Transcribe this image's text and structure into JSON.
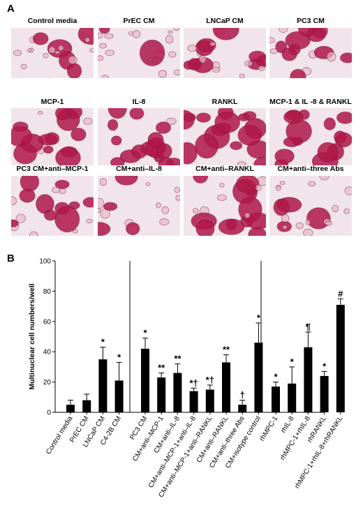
{
  "panel_a": {
    "letter": "A",
    "tiles": [
      {
        "title": "Control media",
        "density": 0.15
      },
      {
        "title": "PrEC CM",
        "density": 0.18
      },
      {
        "title": "LNCaP CM",
        "density": 0.55
      },
      {
        "title": "PC3 CM",
        "density": 0.6
      },
      {
        "title": "MCP-1",
        "density": 0.8
      },
      {
        "title": "IL-8",
        "density": 0.75
      },
      {
        "title": "RANKL",
        "density": 0.85
      },
      {
        "title": "MCP-1 & IL -8 & RANKL",
        "density": 0.9
      },
      {
        "title": "PC3 CM+anti–MCP-1",
        "density": 0.45
      },
      {
        "title": "CM+anti–IL-8",
        "density": 0.5
      },
      {
        "title": "CM+anti–RANKL",
        "density": 0.5
      },
      {
        "title": "CM+anti–three Abs",
        "density": 0.2
      }
    ],
    "stain_color": "#b0184a"
  },
  "panel_b": {
    "letter": "B"
  },
  "chart_data": {
    "type": "bar",
    "ylabel": "Multinuclear cell numbers/well",
    "xlabel": "",
    "ylim": [
      0,
      100
    ],
    "yticks": [
      0,
      20,
      40,
      60,
      80,
      100
    ],
    "bar_color": "#000000",
    "groups": [
      {
        "categories": [
          "Control media",
          "PrEC CM",
          "LNCaP CM",
          "C4-2B CM"
        ],
        "values": [
          5,
          8,
          35,
          21
        ],
        "errors": [
          3,
          4,
          8,
          12
        ],
        "annotations": [
          "",
          "",
          "*",
          "*"
        ]
      },
      {
        "categories": [
          "PC3 CM",
          "CM+anti–MCP-1",
          "CM+anti–IL-8",
          "CM+anti–MCP-1+anti–IL-8",
          "CM+anti–MCP-1+anti–RANKL",
          "CM+anti–RANKL",
          "CM+anti–three Abs",
          "CM+isotype control"
        ],
        "values": [
          42,
          23,
          26,
          14,
          15,
          33,
          5,
          46
        ],
        "errors": [
          7,
          3,
          6,
          2,
          3,
          5,
          3,
          13
        ],
        "annotations": [
          "*",
          "**",
          "**",
          "*†",
          "*†",
          "**",
          "†",
          "*"
        ]
      },
      {
        "categories": [
          "rhMPC-1",
          "rhIL-8",
          "rhMPC-1+rhIL-8",
          "rhRANKL",
          "rhMPC-1+rhIL-8+rhRANKL"
        ],
        "values": [
          17,
          19,
          43,
          24,
          71
        ],
        "errors": [
          3,
          11,
          10,
          3,
          4
        ],
        "annotations": [
          "*",
          "*",
          "¶",
          "*",
          "#"
        ]
      }
    ]
  }
}
